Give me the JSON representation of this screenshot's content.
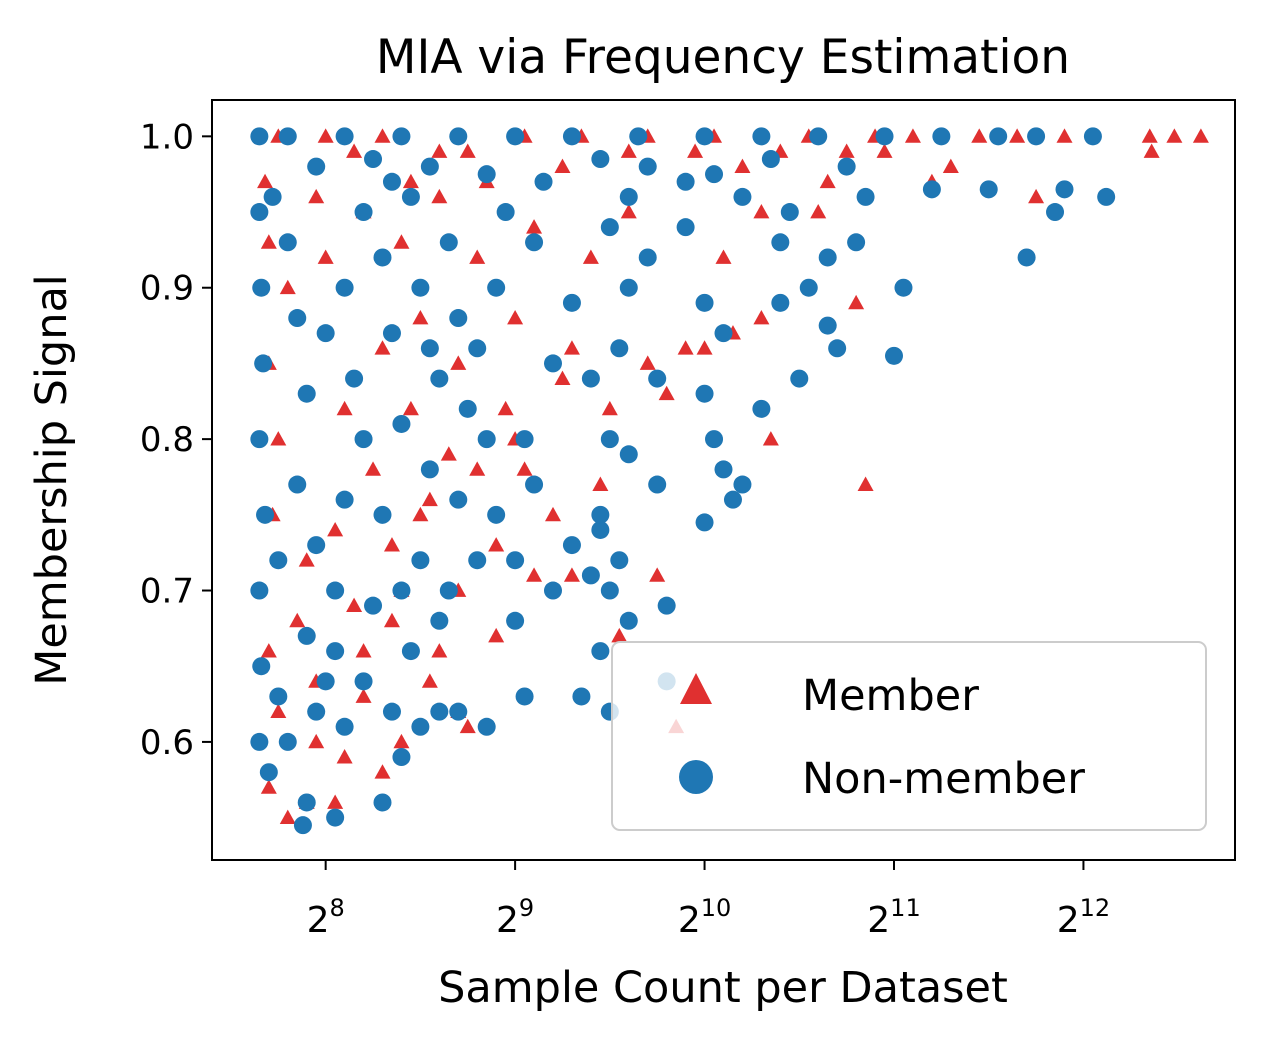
{
  "chart_data": {
    "type": "scatter",
    "title": "MIA via Frequency Estimation",
    "xlabel": "Sample Count per Dataset",
    "ylabel": "Membership Signal",
    "x_scale": "log2",
    "xlim_log2": [
      7.4,
      12.8
    ],
    "ylim": [
      0.522,
      1.024
    ],
    "x_ticks": [
      {
        "base": "2",
        "exp": "8",
        "log2": 8
      },
      {
        "base": "2",
        "exp": "9",
        "log2": 9
      },
      {
        "base": "2",
        "exp": "10",
        "log2": 10
      },
      {
        "base": "2",
        "exp": "11",
        "log2": 11
      },
      {
        "base": "2",
        "exp": "12",
        "log2": 12
      }
    ],
    "y_ticks": [
      {
        "label": "0.6",
        "value": 0.6
      },
      {
        "label": "0.7",
        "value": 0.7
      },
      {
        "label": "0.8",
        "value": 0.8
      },
      {
        "label": "0.9",
        "value": 0.9
      },
      {
        "label": "1.0",
        "value": 1.0
      }
    ],
    "legend": {
      "position": "lower-right",
      "entries": [
        {
          "label": "Member",
          "marker": "triangle",
          "color": "#e03030"
        },
        {
          "label": "Non-member",
          "marker": "circle",
          "color": "#1f77b4"
        }
      ]
    },
    "series": [
      {
        "name": "Member",
        "color": "#e03030",
        "marker": "triangle",
        "points": [
          [
            7.7,
            0.57
          ],
          [
            7.8,
            0.55
          ],
          [
            7.9,
            0.56
          ],
          [
            8.05,
            0.56
          ],
          [
            8.1,
            0.59
          ],
          [
            8.3,
            0.58
          ],
          [
            7.75,
            0.62
          ],
          [
            7.95,
            0.64
          ],
          [
            8.2,
            0.66
          ],
          [
            8.4,
            0.7
          ],
          [
            8.6,
            0.66
          ],
          [
            8.75,
            0.61
          ],
          [
            8.9,
            0.67
          ],
          [
            9.1,
            0.71
          ],
          [
            9.3,
            0.71
          ],
          [
            9.55,
            0.67
          ],
          [
            9.75,
            0.71
          ],
          [
            9.85,
            0.61
          ],
          [
            8.5,
            0.75
          ],
          [
            8.8,
            0.78
          ],
          [
            9.0,
            0.8
          ],
          [
            9.2,
            0.75
          ],
          [
            9.5,
            0.82
          ],
          [
            9.8,
            0.83
          ],
          [
            10.0,
            0.86
          ],
          [
            10.15,
            0.87
          ],
          [
            10.35,
            0.8
          ],
          [
            10.85,
            0.77
          ],
          [
            10.8,
            0.89
          ],
          [
            9.0,
            0.88
          ],
          [
            9.3,
            0.86
          ],
          [
            9.7,
            0.85
          ],
          [
            9.9,
            0.86
          ],
          [
            10.3,
            0.88
          ],
          [
            9.1,
            0.94
          ],
          [
            9.4,
            0.92
          ],
          [
            9.6,
            0.95
          ],
          [
            10.1,
            0.92
          ],
          [
            10.3,
            0.95
          ],
          [
            10.6,
            0.95
          ],
          [
            10.65,
            0.97
          ],
          [
            11.2,
            0.97
          ],
          [
            11.3,
            0.98
          ],
          [
            11.75,
            0.96
          ],
          [
            11.9,
            1.0
          ],
          [
            12.35,
            1.0
          ],
          [
            12.36,
            0.99
          ],
          [
            12.48,
            1.0
          ],
          [
            12.62,
            1.0
          ],
          [
            11.65,
            1.0
          ],
          [
            11.45,
            1.0
          ],
          [
            10.75,
            0.99
          ],
          [
            10.95,
            0.99
          ],
          [
            11.1,
            1.0
          ],
          [
            10.4,
            0.99
          ],
          [
            10.2,
            0.98
          ],
          [
            9.95,
            0.99
          ],
          [
            9.6,
            0.99
          ],
          [
            9.25,
            0.98
          ],
          [
            8.85,
            0.97
          ],
          [
            8.6,
            0.96
          ],
          [
            8.4,
            0.93
          ],
          [
            8.2,
            0.95
          ],
          [
            8.0,
            0.92
          ],
          [
            7.8,
            0.9
          ],
          [
            7.7,
            0.85
          ],
          [
            7.75,
            0.8
          ],
          [
            7.72,
            0.75
          ],
          [
            7.9,
            0.72
          ],
          [
            8.1,
            0.82
          ],
          [
            8.3,
            0.86
          ],
          [
            8.5,
            0.88
          ],
          [
            8.7,
            0.85
          ],
          [
            8.65,
            0.79
          ],
          [
            8.45,
            0.82
          ],
          [
            8.25,
            0.78
          ],
          [
            8.05,
            0.74
          ],
          [
            7.85,
            0.68
          ],
          [
            7.7,
            0.66
          ],
          [
            8.15,
            0.69
          ],
          [
            8.35,
            0.73
          ],
          [
            8.55,
            0.76
          ],
          [
            8.7,
            0.7
          ],
          [
            8.9,
            0.73
          ],
          [
            9.05,
            0.78
          ],
          [
            9.45,
            0.77
          ],
          [
            9.25,
            0.84
          ],
          [
            8.95,
            0.82
          ],
          [
            8.8,
            0.92
          ],
          [
            8.6,
            0.99
          ],
          [
            8.3,
            1.0
          ],
          [
            8.0,
            1.0
          ],
          [
            7.75,
            1.0
          ],
          [
            7.68,
            0.97
          ],
          [
            7.7,
            0.93
          ],
          [
            7.95,
            0.96
          ],
          [
            8.15,
            0.99
          ],
          [
            8.45,
            0.97
          ],
          [
            8.75,
            0.99
          ],
          [
            9.05,
            1.0
          ],
          [
            9.35,
            1.0
          ],
          [
            9.7,
            1.0
          ],
          [
            10.05,
            1.0
          ],
          [
            10.55,
            1.0
          ],
          [
            10.9,
            1.0
          ],
          [
            8.4,
            0.6
          ],
          [
            8.2,
            0.63
          ],
          [
            7.95,
            0.6
          ],
          [
            8.55,
            0.64
          ],
          [
            8.35,
            0.68
          ],
          [
            8.7,
            0.62
          ]
        ]
      },
      {
        "name": "Non-member",
        "color": "#1f77b4",
        "marker": "circle",
        "points": [
          [
            7.88,
            0.545
          ],
          [
            7.9,
            0.56
          ],
          [
            8.05,
            0.55
          ],
          [
            8.3,
            0.56
          ],
          [
            7.7,
            0.58
          ],
          [
            7.8,
            0.6
          ],
          [
            7.95,
            0.62
          ],
          [
            8.1,
            0.61
          ],
          [
            8.4,
            0.59
          ],
          [
            8.5,
            0.61
          ],
          [
            8.7,
            0.62
          ],
          [
            8.85,
            0.61
          ],
          [
            9.05,
            0.63
          ],
          [
            9.35,
            0.63
          ],
          [
            9.5,
            0.62
          ],
          [
            9.8,
            0.64
          ],
          [
            9.45,
            0.66
          ],
          [
            9.8,
            0.69
          ],
          [
            9.0,
            0.68
          ],
          [
            9.2,
            0.7
          ],
          [
            9.4,
            0.71
          ],
          [
            9.5,
            0.7
          ],
          [
            9.6,
            0.68
          ],
          [
            8.6,
            0.68
          ],
          [
            8.8,
            0.72
          ],
          [
            9.0,
            0.72
          ],
          [
            9.3,
            0.73
          ],
          [
            9.45,
            0.74
          ],
          [
            9.55,
            0.72
          ],
          [
            10.0,
            0.745
          ],
          [
            10.1,
            0.78
          ],
          [
            10.15,
            0.76
          ],
          [
            10.2,
            0.77
          ],
          [
            10.05,
            0.8
          ],
          [
            10.3,
            0.82
          ],
          [
            9.75,
            0.77
          ],
          [
            9.6,
            0.79
          ],
          [
            9.45,
            0.75
          ],
          [
            9.1,
            0.77
          ],
          [
            8.9,
            0.75
          ],
          [
            9.05,
            0.8
          ],
          [
            9.5,
            0.8
          ],
          [
            9.2,
            0.85
          ],
          [
            9.4,
            0.84
          ],
          [
            9.55,
            0.86
          ],
          [
            9.75,
            0.84
          ],
          [
            10.0,
            0.83
          ],
          [
            10.1,
            0.87
          ],
          [
            10.5,
            0.84
          ],
          [
            10.7,
            0.86
          ],
          [
            11.0,
            0.855
          ],
          [
            10.65,
            0.875
          ],
          [
            11.05,
            0.9
          ],
          [
            9.3,
            0.89
          ],
          [
            9.6,
            0.9
          ],
          [
            9.7,
            0.92
          ],
          [
            10.0,
            0.89
          ],
          [
            10.4,
            0.89
          ],
          [
            10.55,
            0.9
          ],
          [
            10.65,
            0.92
          ],
          [
            10.8,
            0.93
          ],
          [
            10.4,
            0.93
          ],
          [
            9.9,
            0.94
          ],
          [
            9.5,
            0.94
          ],
          [
            9.1,
            0.93
          ],
          [
            9.6,
            0.96
          ],
          [
            9.9,
            0.97
          ],
          [
            10.2,
            0.96
          ],
          [
            10.45,
            0.95
          ],
          [
            10.85,
            0.96
          ],
          [
            11.2,
            0.965
          ],
          [
            11.5,
            0.965
          ],
          [
            11.85,
            0.95
          ],
          [
            11.9,
            0.965
          ],
          [
            12.12,
            0.96
          ],
          [
            11.7,
            0.92
          ],
          [
            11.75,
            1.0
          ],
          [
            12.05,
            1.0
          ],
          [
            11.55,
            1.0
          ],
          [
            11.25,
            1.0
          ],
          [
            10.95,
            1.0
          ],
          [
            10.6,
            1.0
          ],
          [
            10.3,
            1.0
          ],
          [
            10.0,
            1.0
          ],
          [
            9.65,
            1.0
          ],
          [
            9.3,
            1.0
          ],
          [
            9.0,
            1.0
          ],
          [
            8.7,
            1.0
          ],
          [
            8.4,
            1.0
          ],
          [
            8.1,
            1.0
          ],
          [
            7.8,
            1.0
          ],
          [
            7.65,
            1.0
          ],
          [
            10.75,
            0.98
          ],
          [
            10.35,
            0.985
          ],
          [
            10.05,
            0.975
          ],
          [
            9.7,
            0.98
          ],
          [
            9.45,
            0.985
          ],
          [
            9.15,
            0.97
          ],
          [
            8.85,
            0.975
          ],
          [
            8.55,
            0.98
          ],
          [
            7.65,
            0.95
          ],
          [
            7.66,
            0.9
          ],
          [
            7.67,
            0.85
          ],
          [
            7.65,
            0.8
          ],
          [
            7.68,
            0.75
          ],
          [
            7.65,
            0.7
          ],
          [
            7.66,
            0.65
          ],
          [
            7.65,
            0.6
          ],
          [
            7.8,
            0.93
          ],
          [
            7.85,
            0.88
          ],
          [
            7.9,
            0.83
          ],
          [
            7.85,
            0.77
          ],
          [
            7.95,
            0.73
          ],
          [
            7.9,
            0.67
          ],
          [
            8.05,
            0.7
          ],
          [
            8.1,
            0.76
          ],
          [
            8.15,
            0.84
          ],
          [
            8.1,
            0.9
          ],
          [
            8.2,
            0.95
          ],
          [
            8.3,
            0.92
          ],
          [
            8.35,
            0.87
          ],
          [
            8.4,
            0.81
          ],
          [
            8.3,
            0.75
          ],
          [
            8.25,
            0.69
          ],
          [
            8.45,
            0.66
          ],
          [
            8.5,
            0.72
          ],
          [
            8.55,
            0.78
          ],
          [
            8.6,
            0.84
          ],
          [
            8.5,
            0.9
          ],
          [
            8.45,
            0.96
          ],
          [
            8.65,
            0.93
          ],
          [
            8.7,
            0.88
          ],
          [
            8.75,
            0.82
          ],
          [
            8.7,
            0.76
          ],
          [
            8.65,
            0.7
          ],
          [
            8.8,
            0.86
          ],
          [
            8.9,
            0.9
          ],
          [
            8.95,
            0.95
          ],
          [
            8.85,
            0.8
          ],
          [
            8.2,
            0.64
          ],
          [
            8.0,
            0.64
          ],
          [
            7.75,
            0.63
          ],
          [
            8.35,
            0.62
          ],
          [
            8.6,
            0.62
          ],
          [
            7.95,
            0.98
          ],
          [
            8.25,
            0.985
          ],
          [
            7.72,
            0.96
          ],
          [
            8.0,
            0.87
          ],
          [
            8.2,
            0.8
          ],
          [
            7.75,
            0.72
          ],
          [
            8.05,
            0.66
          ],
          [
            8.4,
            0.7
          ],
          [
            8.55,
            0.86
          ],
          [
            8.35,
            0.97
          ]
        ]
      }
    ]
  }
}
